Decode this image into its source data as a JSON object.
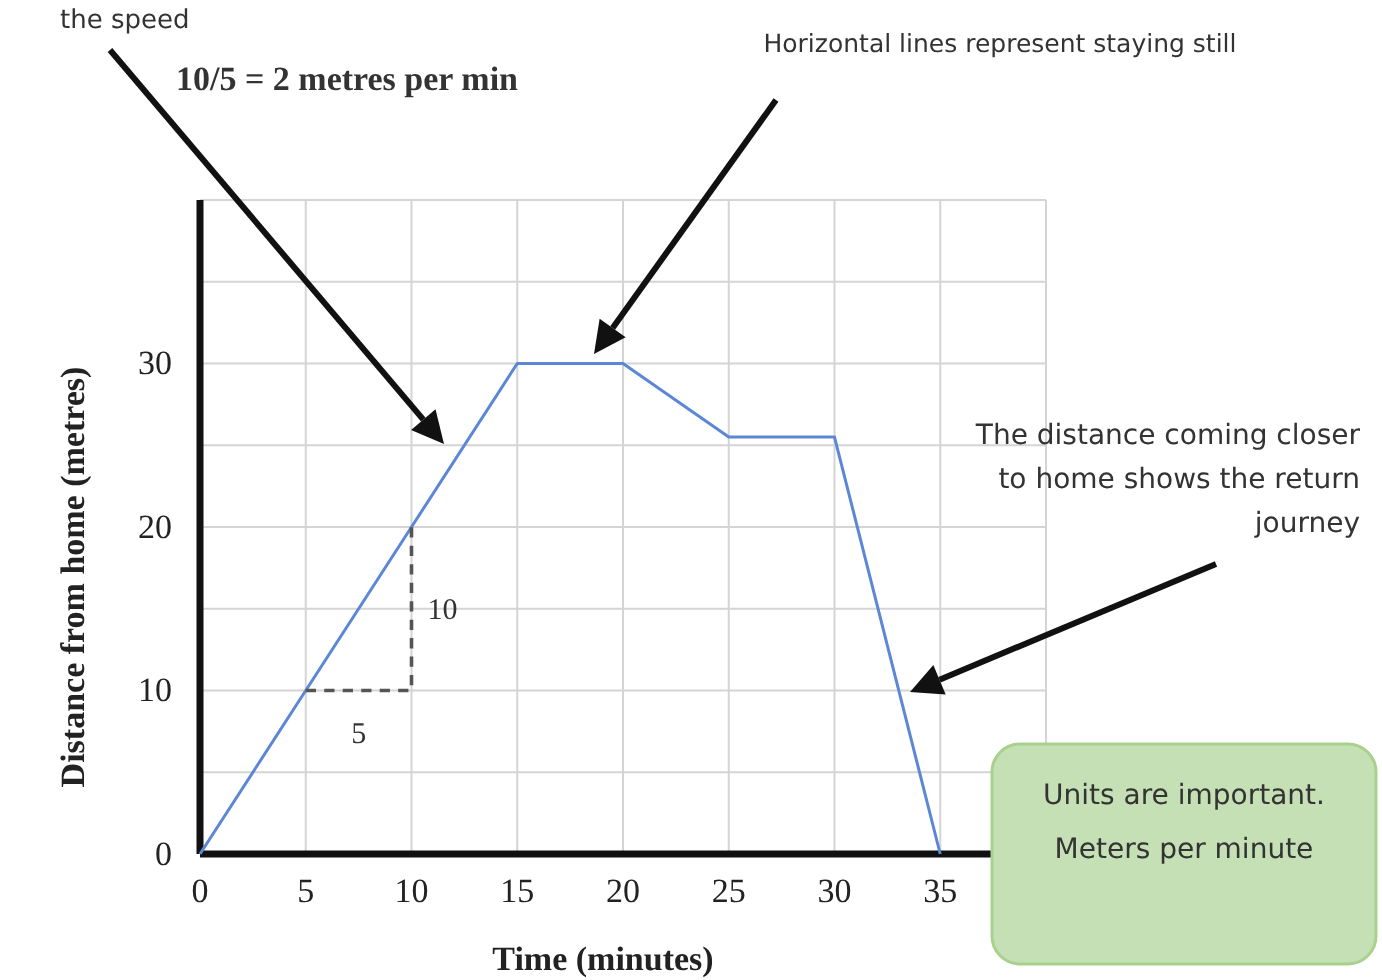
{
  "chart_data": {
    "type": "line",
    "xlabel": "Time (minutes)",
    "ylabel": "Distance from home (metres)",
    "xlim": [
      0,
      40
    ],
    "ylim": [
      0,
      40
    ],
    "xticks": [
      0,
      5,
      10,
      15,
      20,
      25,
      30,
      35,
      {
        "value": 40,
        "label": null
      }
    ],
    "yticks": [
      0,
      {
        "value": 5,
        "label": null
      },
      10,
      {
        "value": 15,
        "label": null
      },
      20,
      {
        "value": 25,
        "label": null
      },
      30,
      {
        "value": 35,
        "label": null
      },
      {
        "value": 40,
        "label": null
      }
    ],
    "grid": true,
    "series": [
      {
        "color": "#5b87d6",
        "x": [
          0,
          5,
          10,
          15,
          20,
          25,
          30,
          35
        ],
        "values": [
          0,
          10,
          20,
          30,
          30,
          25.5,
          25.5,
          0
        ]
      },
      {
        "color": "#555555",
        "line_style": "dashed",
        "x": [
          5,
          10,
          10
        ],
        "values": [
          10,
          10,
          20
        ]
      }
    ],
    "annotations": [
      "the speed",
      "10/5 = 2 metres per min",
      "Horizontal lines represent staying still",
      "The distance coming closer to home shows the return journey",
      "Units are important. Meters per minute",
      {
        "text": "5",
        "x": 7.5,
        "y": 10
      },
      {
        "text": "10",
        "x": 10,
        "y": 15
      }
    ]
  }
}
